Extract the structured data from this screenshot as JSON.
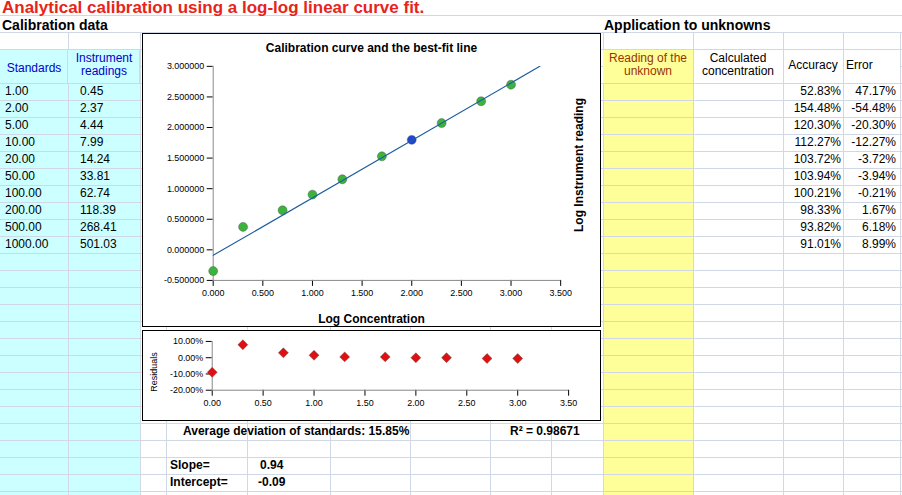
{
  "sheet": {
    "title": "Analytical calibration using a log-log linear curve fit.",
    "calibration_header": "Calibration data",
    "calibration_columns": [
      "Standards",
      "Instrument readings"
    ],
    "calibration_rows": [
      [
        "1.00",
        "0.45"
      ],
      [
        "2.00",
        "2.37"
      ],
      [
        "5.00",
        "4.44"
      ],
      [
        "10.00",
        "7.99"
      ],
      [
        "20.00",
        "14.24"
      ],
      [
        "50.00",
        "33.81"
      ],
      [
        "100.00",
        "62.74"
      ],
      [
        "200.00",
        "118.39"
      ],
      [
        "500.00",
        "268.41"
      ],
      [
        "1000.00",
        "501.03"
      ]
    ],
    "unknowns_header": "Application to unknowns",
    "unknowns_columns": [
      "Reading of the unknown",
      "Calculated concentration",
      "Accuracy",
      "Error"
    ],
    "accuracy": [
      "52.83%",
      "154.48%",
      "120.30%",
      "112.27%",
      "103.72%",
      "103.94%",
      "100.21%",
      "98.33%",
      "93.82%",
      "91.01%"
    ],
    "error": [
      "47.17%",
      "-54.48%",
      "-20.30%",
      "-12.27%",
      "-3.72%",
      "-3.94%",
      "-0.21%",
      "1.67%",
      "6.18%",
      "8.99%"
    ],
    "average_deviation": "Average deviation of standards: 15.85%",
    "r_squared": "R² = 0.98671",
    "slope_label": "Slope=",
    "slope": "0.94",
    "intercept_label": "Intercept=",
    "intercept": "-0.09"
  },
  "chart_data": [
    {
      "type": "scatter",
      "title": "Calibration curve and the best-fit line",
      "x_label": "Log Concentration",
      "y_label": "Log Instrument reading",
      "xlim": [
        0,
        3.5
      ],
      "xticks": [
        {
          "value": 0,
          "label": "0.000"
        },
        {
          "value": 0.5,
          "label": "0.500"
        },
        {
          "value": 1,
          "label": "1.000"
        },
        {
          "value": 1.5,
          "label": "1.500"
        },
        {
          "value": 2,
          "label": "2.000"
        },
        {
          "value": 2.5,
          "label": "2.500"
        },
        {
          "value": 3,
          "label": "3.000"
        },
        {
          "value": 3.5,
          "label": "3.500"
        }
      ],
      "ylim": [
        -0.5,
        3
      ],
      "yticks": [
        {
          "value": -0.5,
          "label": "-0.500000"
        },
        {
          "value": 0,
          "label": "0.000000"
        },
        {
          "value": 0.5,
          "label": "0.500000"
        },
        {
          "value": 1,
          "label": "1.000000"
        },
        {
          "value": 1.5,
          "label": "1.500000"
        },
        {
          "value": 2,
          "label": "2.000000"
        },
        {
          "value": 2.5,
          "label": "2.500000"
        },
        {
          "value": 3,
          "label": "3.000000"
        }
      ],
      "series": [
        {
          "type": "scatter",
          "marker": "circle",
          "x": [
            0,
            0.301,
            0.699,
            1,
            1.301,
            1.699,
            2,
            2.301,
            2.699,
            3
          ],
          "values": [
            -0.347,
            0.375,
            0.647,
            0.903,
            1.154,
            1.529,
            1.798,
            2.073,
            2.429,
            2.7
          ],
          "colors": [
            "#3cb43c",
            "#3cb43c",
            "#3cb43c",
            "#3cb43c",
            "#3cb43c",
            "#3cb43c",
            "#2244d0",
            "#3cb43c",
            "#3cb43c",
            "#3cb43c"
          ]
        },
        {
          "type": "line",
          "line_style": "solid",
          "color": "#1f5f9f",
          "x": [
            0,
            3.29
          ],
          "values": [
            -0.09,
            3.0
          ]
        }
      ]
    },
    {
      "type": "scatter",
      "y_label": "Residuals",
      "xlim": [
        0,
        3.5
      ],
      "xticks": [
        {
          "value": 0,
          "label": "0.00"
        },
        {
          "value": 0.5,
          "label": "0.50"
        },
        {
          "value": 1,
          "label": "1.00"
        },
        {
          "value": 1.5,
          "label": "1.50"
        },
        {
          "value": 2,
          "label": "2.00"
        },
        {
          "value": 2.5,
          "label": "2.50"
        },
        {
          "value": 3,
          "label": "3.00"
        },
        {
          "value": 3.5,
          "label": "3.50"
        }
      ],
      "ylim": [
        -20,
        10
      ],
      "yticks": [
        {
          "value": -20,
          "label": "-20.00%"
        },
        {
          "value": -10,
          "label": "-10.00%"
        },
        {
          "value": 0,
          "label": "0.00%"
        },
        {
          "value": 10,
          "label": "10.00%"
        }
      ],
      "series": [
        {
          "type": "scatter",
          "marker": "diamond",
          "color": "#e01010",
          "x": [
            0,
            0.301,
            0.699,
            1,
            1.301,
            1.699,
            2,
            2.301,
            2.699,
            3
          ],
          "values": [
            -9,
            8,
            3,
            1.5,
            0.5,
            0.5,
            0,
            0,
            -0.5,
            -0.5
          ]
        }
      ]
    }
  ]
}
